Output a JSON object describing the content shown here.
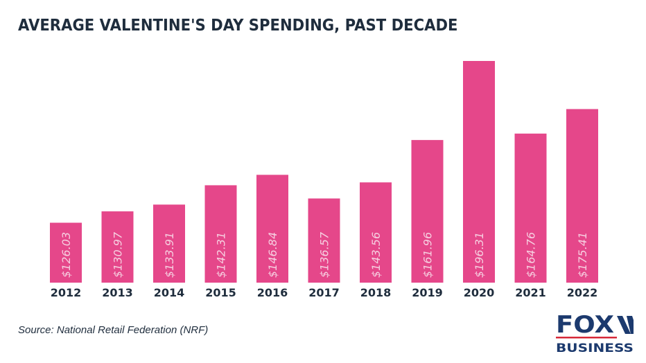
{
  "chart_data": {
    "type": "bar",
    "title": "AVERAGE VALENTINE'S DAY SPENDING, PAST DECADE",
    "categories": [
      "2012",
      "2013",
      "2014",
      "2015",
      "2016",
      "2017",
      "2018",
      "2019",
      "2020",
      "2021",
      "2022"
    ],
    "values": [
      126.03,
      130.97,
      133.91,
      142.31,
      146.84,
      136.57,
      143.56,
      161.96,
      196.31,
      164.76,
      175.41
    ],
    "data_labels": [
      "$126.03",
      "$130.97",
      "$133.91",
      "$142.31",
      "$146.84",
      "$136.57",
      "$143.56",
      "$161.96",
      "$196.31",
      "$164.76",
      "$175.41"
    ],
    "xlabel": "",
    "ylabel": "",
    "ylim": [
      100,
      200
    ],
    "grid": false,
    "bar_color": "#e5478a",
    "label_color": "#f6cfe0",
    "text_color": "#1f2d3d"
  },
  "source": "Source: National Retail Federation (NRF)",
  "logo": {
    "line1": "FOX",
    "line2": "BUSINESS",
    "color": "#1c3a6e",
    "rule_color": "#d62839"
  }
}
